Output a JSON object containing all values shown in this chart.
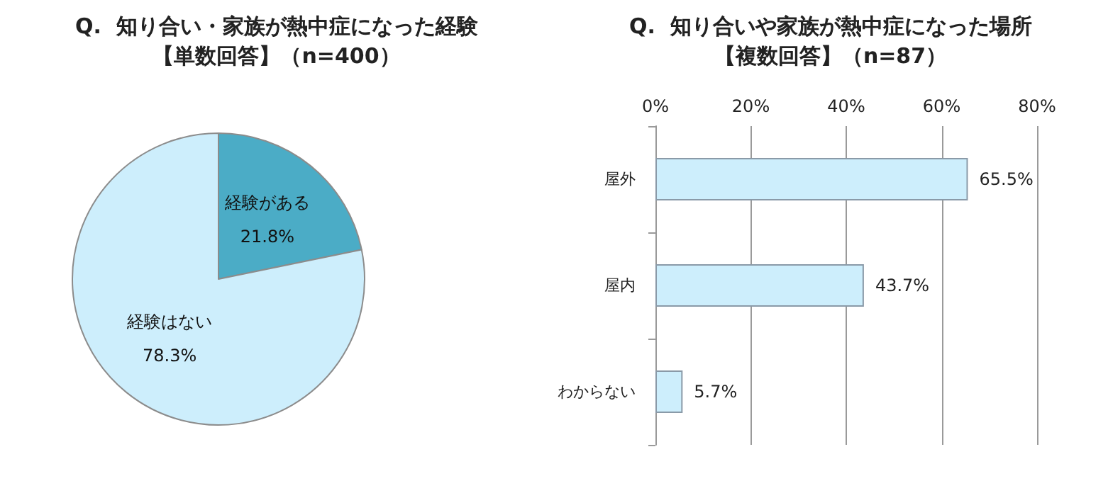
{
  "chart_data": [
    {
      "type": "pie",
      "title": "Q.  知り合い・家族が熱中症になった経験",
      "subtitle": "【単数回答】（n=400）",
      "categories": [
        "経験がある",
        "経験はない"
      ],
      "values": [
        21.8,
        78.3
      ],
      "colors": [
        "#4bacc6",
        "#cdeefc"
      ],
      "value_labels": [
        "21.8%",
        "78.3%"
      ]
    },
    {
      "type": "bar",
      "orientation": "horizontal",
      "title": "Q.  知り合いや家族が熱中症になった場所",
      "subtitle": "【複数回答】（n=87）",
      "categories": [
        "屋外",
        "屋内",
        "わからない"
      ],
      "values": [
        65.5,
        43.7,
        5.7
      ],
      "color": "#cdeefc",
      "value_labels": [
        "65.5%",
        "43.7%",
        "5.7%"
      ],
      "xlim": [
        0,
        80
      ],
      "xticks": [
        {
          "value": 0,
          "label": "0%"
        },
        {
          "value": 20,
          "label": "20%"
        },
        {
          "value": 40,
          "label": "40%"
        },
        {
          "value": 60,
          "label": "60%"
        },
        {
          "value": 80,
          "label": "80%"
        }
      ],
      "grid": "x"
    }
  ]
}
